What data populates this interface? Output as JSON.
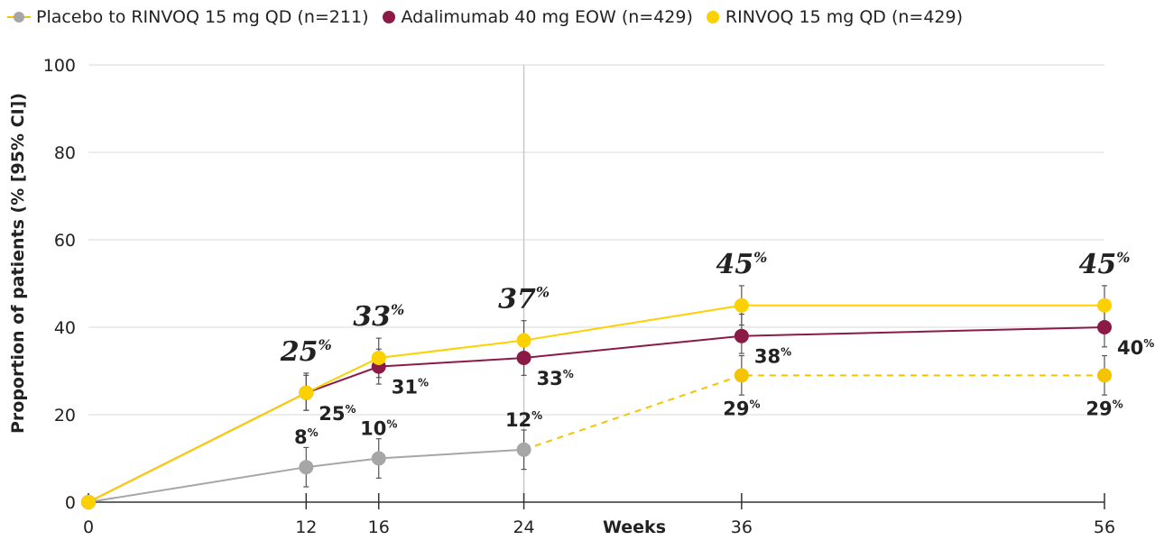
{
  "chart_data": {
    "type": "line",
    "ylabel": "Proportion of patients (% [95% CI])",
    "xlabel": "Weeks",
    "x_ticks": [
      0,
      12,
      16,
      24,
      36,
      56
    ],
    "y_ticks": [
      0,
      20,
      40,
      60,
      80,
      100
    ],
    "xlim": [
      0,
      56
    ],
    "ylim": [
      0,
      100
    ],
    "grid": "horizontal",
    "legend_position": "top-left",
    "reference_line_x": 24,
    "series": [
      {
        "key": "placebo",
        "name": "Placebo to RINVOQ 15 mg QD (n=211)",
        "color": "#a6a6a6",
        "x": [
          0,
          12,
          16,
          24
        ],
        "y": [
          0,
          8,
          10,
          12
        ],
        "ci_low": [
          null,
          3.5,
          5.5,
          7.5
        ],
        "ci_high": [
          null,
          12.5,
          14.5,
          16.5
        ],
        "labels": [
          "",
          "8",
          "10",
          "12"
        ],
        "label_positions": [
          "",
          "above",
          "above",
          "above"
        ],
        "label_style": "small",
        "continuation": {
          "key": "placebo_switch",
          "color": "#f5c400",
          "x": [
            24,
            36,
            56
          ],
          "y": [
            12,
            29,
            29
          ],
          "ci_low": [
            null,
            24.5,
            24.5
          ],
          "ci_high": [
            null,
            33.5,
            33.5
          ],
          "labels": [
            "",
            "29",
            "29"
          ],
          "label_positions": [
            "",
            "below",
            "below"
          ],
          "label_style": "small"
        }
      },
      {
        "key": "adalimumab",
        "name": "Adalimumab 40 mg EOW (n=429)",
        "color": "#8b1a47",
        "x": [
          0,
          12,
          16,
          24,
          36,
          56
        ],
        "y": [
          0,
          25,
          31,
          33,
          38,
          40
        ],
        "ci_low": [
          null,
          21,
          27,
          29,
          34,
          35.5
        ],
        "ci_high": [
          null,
          29,
          35,
          37.5,
          43,
          44.5
        ],
        "labels": [
          "",
          "25",
          "31",
          "33",
          "38",
          "40"
        ],
        "label_positions": [
          "",
          "below-right",
          "below-right",
          "below-right",
          "below-right",
          "below-right"
        ],
        "label_style": "small"
      },
      {
        "key": "rinvoq",
        "name": "RINVOQ 15 mg QD (n=429)",
        "color": "#fdd000",
        "x": [
          0,
          12,
          16,
          24,
          36,
          56
        ],
        "y": [
          0,
          25,
          33,
          37,
          45,
          45
        ],
        "ci_low": [
          null,
          21,
          28.5,
          32.5,
          40.5,
          40.5
        ],
        "ci_high": [
          null,
          29.5,
          37.5,
          41.5,
          49.5,
          49.5
        ],
        "labels": [
          "",
          "25",
          "33",
          "37",
          "45",
          "45"
        ],
        "label_positions": [
          "",
          "above",
          "above",
          "above",
          "above",
          "above"
        ],
        "label_style": "big"
      }
    ],
    "percent_symbol": "%"
  }
}
